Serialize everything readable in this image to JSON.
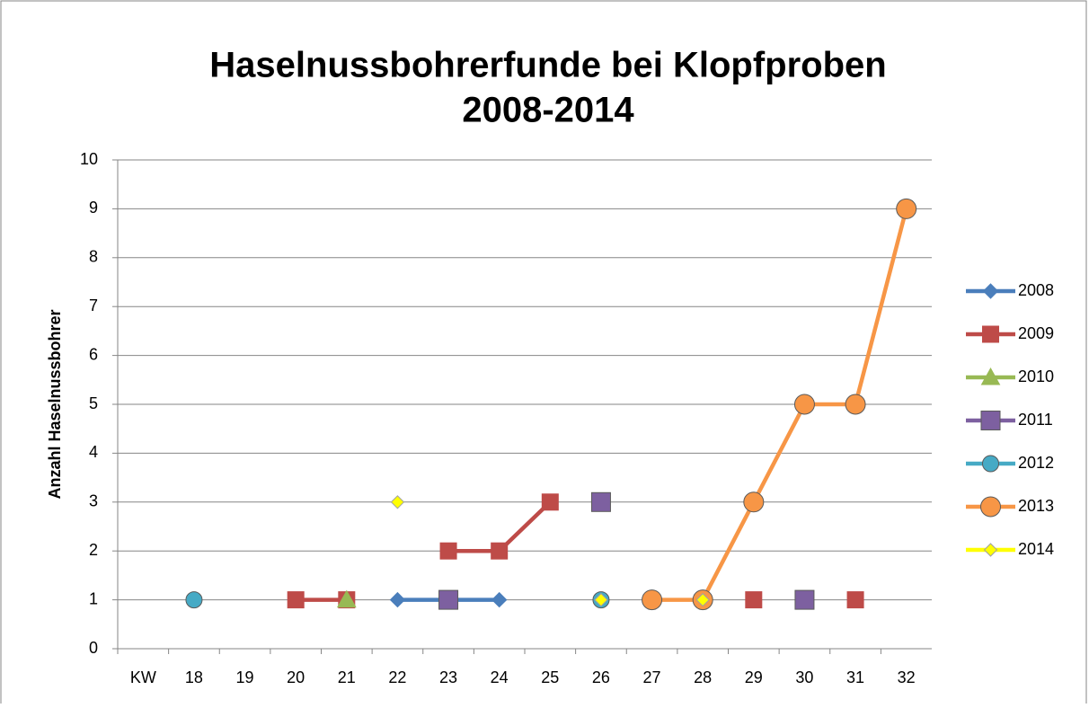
{
  "chart_data": {
    "type": "line",
    "title": [
      "Haselnussbohrerfunde bei Klopfproben",
      "2008-2014"
    ],
    "y_label": "Anzahl Haselnussbohrer",
    "categories": [
      "KW",
      "18",
      "19",
      "20",
      "21",
      "22",
      "23",
      "24",
      "25",
      "26",
      "27",
      "28",
      "29",
      "30",
      "31",
      "32"
    ],
    "ylim": [
      0,
      10
    ],
    "yticks": [
      0,
      1,
      2,
      3,
      4,
      5,
      6,
      7,
      8,
      9,
      10
    ],
    "grid": true,
    "legend": "right",
    "series": [
      {
        "name": "2008",
        "color": "#4a7ebb",
        "marker": "diamond",
        "values": [
          null,
          null,
          null,
          null,
          null,
          1,
          1,
          1,
          null,
          null,
          null,
          null,
          null,
          null,
          null,
          null
        ]
      },
      {
        "name": "2009",
        "color": "#be4b48",
        "marker": "square",
        "values": [
          null,
          null,
          null,
          1,
          1,
          null,
          2,
          2,
          3,
          null,
          null,
          null,
          1,
          null,
          1,
          null
        ]
      },
      {
        "name": "2010",
        "color": "#98b954",
        "marker": "triangle",
        "values": [
          null,
          null,
          null,
          null,
          1,
          null,
          null,
          null,
          null,
          null,
          null,
          null,
          null,
          null,
          null,
          null
        ]
      },
      {
        "name": "2011",
        "color": "#7d60a0",
        "marker": "square-large",
        "values": [
          null,
          null,
          null,
          null,
          null,
          null,
          1,
          null,
          null,
          3,
          null,
          null,
          null,
          1,
          null,
          null
        ]
      },
      {
        "name": "2012",
        "color": "#46aac5",
        "marker": "circle",
        "values": [
          null,
          1,
          null,
          null,
          null,
          null,
          null,
          null,
          null,
          1,
          null,
          null,
          null,
          null,
          null,
          null
        ]
      },
      {
        "name": "2013",
        "color": "#f79646",
        "marker": "circle-large",
        "values": [
          null,
          null,
          null,
          null,
          null,
          null,
          null,
          null,
          null,
          null,
          1,
          1,
          3,
          5,
          5,
          9
        ]
      },
      {
        "name": "2014",
        "color": "#ffff00",
        "marker": "diamond-small",
        "values": [
          null,
          null,
          null,
          null,
          null,
          3,
          null,
          null,
          null,
          1,
          null,
          1,
          null,
          null,
          null,
          null
        ]
      }
    ]
  }
}
